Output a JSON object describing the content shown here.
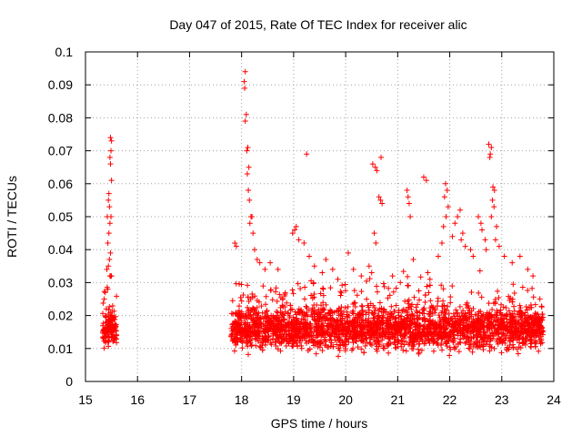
{
  "chart_data": {
    "type": "scatter",
    "title": "Day 047 of 2015, Rate Of TEC Index for receiver alic",
    "xlabel": "GPS time / hours",
    "ylabel": "ROTI / TECUs",
    "xlim": [
      15,
      24
    ],
    "ylim": [
      0,
      0.1
    ],
    "xticks": [
      "15",
      "16",
      "17",
      "18",
      "19",
      "20",
      "21",
      "22",
      "23",
      "24"
    ],
    "yticks": [
      "0",
      "0.01",
      "0.02",
      "0.03",
      "0.04",
      "0.05",
      "0.06",
      "0.07",
      "0.08",
      "0.09",
      "0.1"
    ],
    "grid": true,
    "marker": "+",
    "series": [
      {
        "name": "ROTI",
        "color": "#ff0000",
        "segments": [
          {
            "x_start": 15.33,
            "x_end": 15.6,
            "base_mean": 0.016,
            "base_spread": 0.008
          },
          {
            "x_start": 17.8,
            "x_end": 23.8,
            "base_mean": 0.016,
            "base_spread": 0.009
          }
        ],
        "points": [
          [
            15.48,
            0.074
          ],
          [
            15.5,
            0.073
          ],
          [
            15.49,
            0.07
          ],
          [
            15.47,
            0.068
          ],
          [
            15.48,
            0.066
          ],
          [
            15.5,
            0.061
          ],
          [
            15.45,
            0.057
          ],
          [
            15.44,
            0.055
          ],
          [
            15.46,
            0.053
          ],
          [
            15.49,
            0.05
          ],
          [
            15.42,
            0.05
          ],
          [
            15.47,
            0.048
          ],
          [
            15.45,
            0.045
          ],
          [
            15.43,
            0.042
          ],
          [
            15.48,
            0.039
          ],
          [
            15.46,
            0.037
          ],
          [
            15.44,
            0.035
          ],
          [
            15.41,
            0.034
          ],
          [
            15.47,
            0.032
          ],
          [
            15.5,
            0.032
          ],
          [
            15.43,
            0.028
          ],
          [
            15.38,
            0.027
          ],
          [
            15.36,
            0.025
          ],
          [
            15.4,
            0.022
          ],
          [
            18.07,
            0.094
          ],
          [
            18.05,
            0.091
          ],
          [
            18.06,
            0.089
          ],
          [
            18.09,
            0.081
          ],
          [
            18.07,
            0.079
          ],
          [
            18.12,
            0.071
          ],
          [
            18.1,
            0.07
          ],
          [
            18.14,
            0.065
          ],
          [
            18.11,
            0.063
          ],
          [
            18.13,
            0.058
          ],
          [
            18.15,
            0.055
          ],
          [
            18.18,
            0.05
          ],
          [
            18.2,
            0.05
          ],
          [
            18.16,
            0.048
          ],
          [
            18.22,
            0.045
          ],
          [
            17.87,
            0.042
          ],
          [
            17.9,
            0.041
          ],
          [
            18.25,
            0.04
          ],
          [
            18.3,
            0.037
          ],
          [
            18.35,
            0.036
          ],
          [
            18.45,
            0.034
          ],
          [
            18.55,
            0.036
          ],
          [
            18.7,
            0.034
          ],
          [
            19.05,
            0.047
          ],
          [
            19.02,
            0.046
          ],
          [
            18.98,
            0.045
          ],
          [
            19.1,
            0.043
          ],
          [
            19.2,
            0.042
          ],
          [
            19.25,
            0.069
          ],
          [
            19.3,
            0.038
          ],
          [
            19.4,
            0.035
          ],
          [
            19.55,
            0.033
          ],
          [
            19.62,
            0.037
          ],
          [
            19.75,
            0.034
          ],
          [
            19.85,
            0.031
          ],
          [
            20.05,
            0.039
          ],
          [
            20.15,
            0.034
          ],
          [
            20.3,
            0.032
          ],
          [
            20.45,
            0.035
          ],
          [
            20.52,
            0.066
          ],
          [
            20.57,
            0.065
          ],
          [
            20.6,
            0.064
          ],
          [
            20.68,
            0.068
          ],
          [
            20.64,
            0.056
          ],
          [
            20.67,
            0.055
          ],
          [
            20.7,
            0.054
          ],
          [
            20.55,
            0.045
          ],
          [
            20.58,
            0.042
          ],
          [
            20.5,
            0.033
          ],
          [
            20.9,
            0.032
          ],
          [
            21.05,
            0.03
          ],
          [
            21.18,
            0.058
          ],
          [
            21.2,
            0.056
          ],
          [
            21.22,
            0.054
          ],
          [
            21.24,
            0.05
          ],
          [
            21.3,
            0.037
          ],
          [
            21.5,
            0.062
          ],
          [
            21.55,
            0.061
          ],
          [
            21.58,
            0.033
          ],
          [
            21.62,
            0.031
          ],
          [
            21.78,
            0.038
          ],
          [
            21.85,
            0.042
          ],
          [
            21.92,
            0.06
          ],
          [
            21.95,
            0.058
          ],
          [
            21.9,
            0.056
          ],
          [
            21.97,
            0.053
          ],
          [
            21.93,
            0.05
          ],
          [
            21.88,
            0.047
          ],
          [
            22.05,
            0.044
          ],
          [
            22.1,
            0.048
          ],
          [
            22.2,
            0.052
          ],
          [
            22.15,
            0.05
          ],
          [
            22.25,
            0.045
          ],
          [
            22.22,
            0.043
          ],
          [
            22.3,
            0.041
          ],
          [
            22.4,
            0.04
          ],
          [
            22.45,
            0.038
          ],
          [
            22.55,
            0.05
          ],
          [
            22.6,
            0.048
          ],
          [
            22.62,
            0.046
          ],
          [
            22.68,
            0.043
          ],
          [
            22.7,
            0.04
          ],
          [
            22.75,
            0.072
          ],
          [
            22.8,
            0.071
          ],
          [
            22.78,
            0.069
          ],
          [
            22.77,
            0.068
          ],
          [
            22.83,
            0.059
          ],
          [
            22.86,
            0.058
          ],
          [
            22.82,
            0.055
          ],
          [
            22.85,
            0.053
          ],
          [
            22.8,
            0.05
          ],
          [
            22.9,
            0.047
          ],
          [
            22.88,
            0.043
          ],
          [
            22.95,
            0.041
          ],
          [
            23.05,
            0.038
          ],
          [
            23.2,
            0.036
          ],
          [
            23.35,
            0.038
          ],
          [
            23.5,
            0.034
          ],
          [
            23.6,
            0.032
          ]
        ]
      }
    ]
  }
}
